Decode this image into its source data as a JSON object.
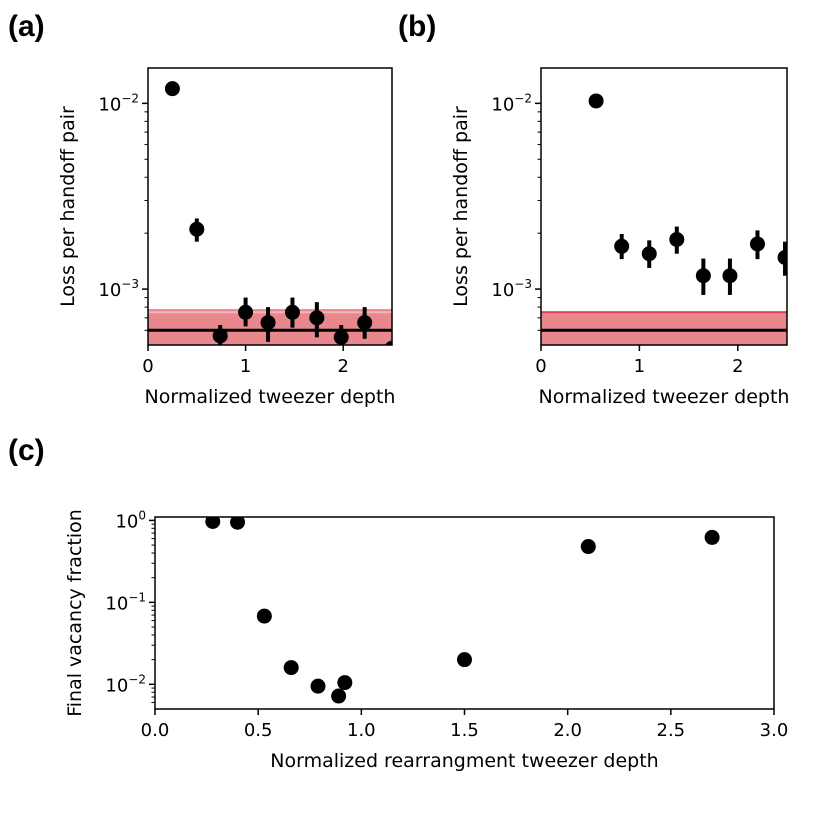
{
  "panels": {
    "a": {
      "label": "(a)"
    },
    "b": {
      "label": "(b)"
    },
    "c": {
      "label": "(c)"
    }
  },
  "chart_data": [
    {
      "id": "a",
      "type": "scatter",
      "xlabel": "Normalized tweezer depth",
      "ylabel": "Loss per handoff pair",
      "xlim": [
        0,
        2.5
      ],
      "ylim": [
        0.0005,
        0.0155
      ],
      "yscale": "log",
      "xticks": [
        0,
        1,
        2
      ],
      "yticks": [
        {
          "value": 0.01,
          "base": "10",
          "exp": "−2"
        },
        {
          "value": 0.001,
          "base": "10",
          "exp": "−3"
        }
      ],
      "series": [
        {
          "x": [
            0.25,
            0.5,
            0.74,
            1.0,
            1.23,
            1.48,
            1.73,
            1.98,
            2.22,
            2.5
          ],
          "y": [
            0.012,
            0.0021,
            0.00056,
            0.00075,
            0.00066,
            0.00075,
            0.0007,
            0.00055,
            0.00066,
            0.00048
          ],
          "yerr_low": [
            0.0,
            0.0003,
            6e-05,
            0.00012,
            0.00014,
            0.00013,
            0.00015,
            8e-05,
            0.00012,
            0.0
          ],
          "yerr_high": [
            0.0,
            0.0003,
            8e-05,
            0.00015,
            0.00014,
            0.00015,
            0.00015,
            9e-05,
            0.00014,
            0.0
          ]
        }
      ],
      "band": {
        "low": 0.0005,
        "high": 0.00078,
        "edge": 0.00075,
        "color": "#e8888d",
        "edge_color": "#f4b6b8"
      },
      "hline": {
        "value": 0.0006,
        "color": "#000000"
      }
    },
    {
      "id": "b",
      "type": "scatter",
      "xlabel": "Normalized tweezer depth",
      "ylabel": "Loss per handoff pair",
      "xlim": [
        0,
        2.5
      ],
      "ylim": [
        0.0005,
        0.0155
      ],
      "yscale": "log",
      "xticks": [
        0,
        1,
        2
      ],
      "yticks": [
        {
          "value": 0.01,
          "base": "10",
          "exp": "−2"
        },
        {
          "value": 0.001,
          "base": "10",
          "exp": "−3"
        }
      ],
      "series": [
        {
          "x": [
            0.56,
            0.82,
            1.1,
            1.38,
            1.65,
            1.92,
            2.2,
            2.48
          ],
          "y": [
            0.0103,
            0.0017,
            0.00155,
            0.00185,
            0.00118,
            0.00118,
            0.00175,
            0.00148
          ],
          "yerr_low": [
            0.0,
            0.00025,
            0.00025,
            0.0003,
            0.00025,
            0.00025,
            0.0003,
            0.0003
          ],
          "yerr_high": [
            0.0,
            0.00028,
            0.00028,
            0.00032,
            0.00028,
            0.00028,
            0.00032,
            0.00032
          ]
        }
      ],
      "band": {
        "low": 0.0005,
        "high": 0.00076,
        "edge": 0.00075,
        "color": "#e8888d",
        "edge_color": "#d9464f"
      },
      "hline": {
        "value": 0.0006,
        "color": "#000000"
      }
    },
    {
      "id": "c",
      "type": "scatter",
      "xlabel": "Normalized rearrangment tweezer depth",
      "ylabel": "Final vacancy fraction",
      "xlim": [
        0,
        3.0
      ],
      "ylim": [
        0.005,
        1.1
      ],
      "yscale": "log",
      "xticks": [
        {
          "value": 0.0,
          "label": "0.0"
        },
        {
          "value": 0.5,
          "label": "0.5"
        },
        {
          "value": 1.0,
          "label": "1.0"
        },
        {
          "value": 1.5,
          "label": "1.5"
        },
        {
          "value": 2.0,
          "label": "2.0"
        },
        {
          "value": 2.5,
          "label": "2.5"
        },
        {
          "value": 3.0,
          "label": "3.0"
        }
      ],
      "yticks": [
        {
          "value": 1,
          "base": "10",
          "exp": "0"
        },
        {
          "value": 0.1,
          "base": "10",
          "exp": "−1"
        },
        {
          "value": 0.01,
          "base": "10",
          "exp": "−2"
        }
      ],
      "series": [
        {
          "x": [
            0.28,
            0.4,
            0.53,
            0.66,
            0.79,
            0.89,
            0.92,
            1.5,
            2.1,
            2.7
          ],
          "y": [
            0.97,
            0.95,
            0.068,
            0.016,
            0.0095,
            0.0072,
            0.0105,
            0.02,
            0.48,
            0.62
          ],
          "yerr_low": [
            0,
            0,
            0,
            0.002,
            0.0015,
            0.0012,
            0.0015,
            0.002,
            0,
            0
          ],
          "yerr_high": [
            0,
            0,
            0,
            0.002,
            0.0015,
            0.0012,
            0.0015,
            0.002,
            0,
            0
          ]
        }
      ]
    }
  ]
}
